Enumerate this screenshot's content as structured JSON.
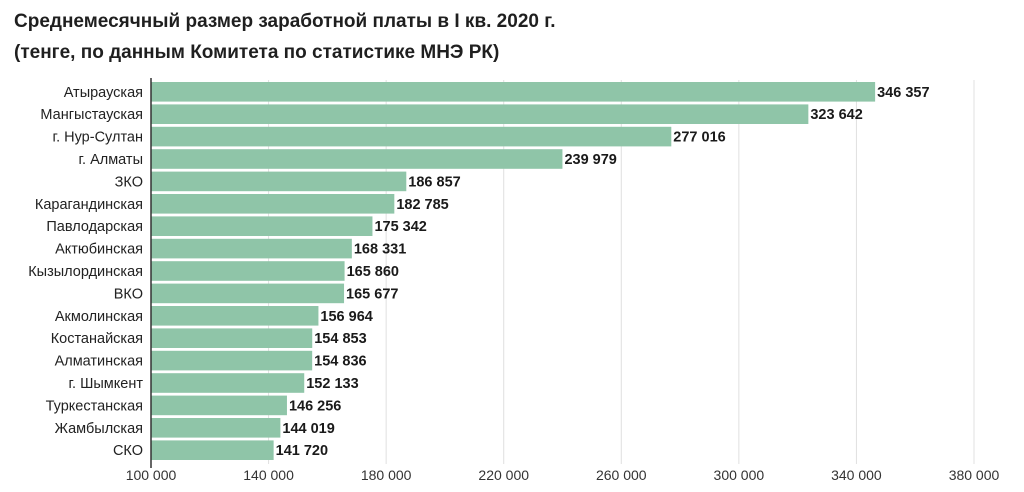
{
  "chart_data": {
    "type": "bar",
    "orientation": "horizontal",
    "title": "Среднемесячный размер заработной платы в I кв. 2020 г.",
    "subtitle": "(тенге, по данным Комитета по статистике МНЭ РК)",
    "categories": [
      "Атырауская",
      "Мангыстауская",
      "г. Нур-Султан",
      "г. Алматы",
      "ЗКО",
      "Карагандинская",
      "Павлодарская",
      "Актюбинская",
      "Кызылординская",
      "ВКО",
      "Акмолинская",
      "Костанайская",
      "Алматинская",
      "г. Шымкент",
      "Туркестанская",
      "Жамбылская",
      "СКО"
    ],
    "values": [
      346357,
      323642,
      277016,
      239979,
      186857,
      182785,
      175342,
      168331,
      165860,
      165677,
      156964,
      154853,
      154836,
      152133,
      146256,
      144019,
      141720
    ],
    "value_labels": [
      "346 357",
      "323 642",
      "277 016",
      "239 979",
      "186 857",
      "182 785",
      "175 342",
      "168 331",
      "165 860",
      "165 677",
      "156 964",
      "154 853",
      "154 836",
      "152 133",
      "146 256",
      "144 019",
      "141 720"
    ],
    "xlim": [
      100000,
      380000
    ],
    "xticks": [
      100000,
      140000,
      180000,
      220000,
      260000,
      300000,
      340000,
      380000
    ],
    "xtick_labels": [
      "100 000",
      "140 000",
      "180 000",
      "220 000",
      "260 000",
      "300 000",
      "340 000",
      "380 000"
    ],
    "xlabel": "",
    "ylabel": "",
    "grid": true,
    "bar_color": "#8fc5a8",
    "axis_color": "#333333",
    "grid_color": "#e0e0e0"
  }
}
